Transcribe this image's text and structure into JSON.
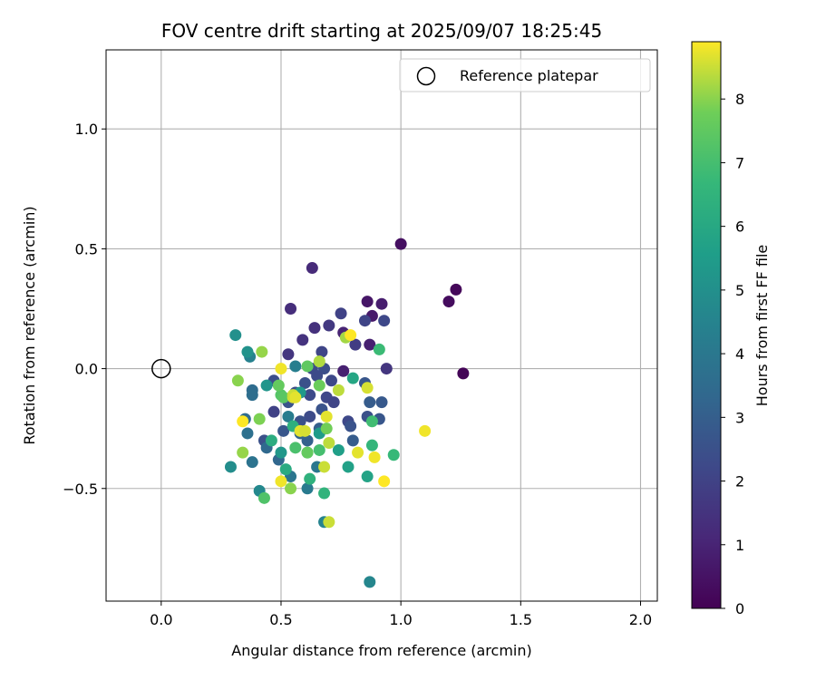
{
  "chart_data": {
    "type": "scatter",
    "title": "FOV centre drift starting at 2025/09/07 18:25:45",
    "xlabel": "Angular distance from reference (arcmin)",
    "ylabel": "Rotation from reference (arcmin)",
    "xlim": [
      -0.23,
      2.07
    ],
    "ylim": [
      -0.97,
      1.33
    ],
    "xticks": [
      0.0,
      0.5,
      1.0,
      1.5,
      2.0
    ],
    "xtick_labels": [
      "0.0",
      "0.5",
      "1.0",
      "1.5",
      "2.0"
    ],
    "yticks": [
      -0.5,
      0.0,
      0.5,
      1.0
    ],
    "ytick_labels": [
      "−0.5",
      "0.0",
      "0.5",
      "1.0"
    ],
    "grid": true,
    "legend": {
      "placement": "top-right",
      "entries": [
        "Reference platepar"
      ]
    },
    "reference_point": {
      "x": 0.0,
      "y": 0.0
    },
    "colorbar": {
      "label": "Hours from first FF file",
      "min": 0,
      "max": 8.9,
      "ticks": [
        0,
        1,
        2,
        3,
        4,
        5,
        6,
        7,
        8
      ],
      "tick_labels": [
        "0",
        "1",
        "2",
        "3",
        "4",
        "5",
        "6",
        "7",
        "8"
      ],
      "colormap": "viridis"
    },
    "points": [
      {
        "x": 1.26,
        "y": -0.02,
        "h": 0.1
      },
      {
        "x": 1.23,
        "y": 0.33,
        "h": 0.2
      },
      {
        "x": 1.2,
        "y": 0.28,
        "h": 0.3
      },
      {
        "x": 1.0,
        "y": 0.52,
        "h": 0.4
      },
      {
        "x": 0.86,
        "y": 0.28,
        "h": 0.6
      },
      {
        "x": 0.88,
        "y": 0.22,
        "h": 0.7
      },
      {
        "x": 0.92,
        "y": 0.27,
        "h": 0.8
      },
      {
        "x": 0.87,
        "y": 0.1,
        "h": 0.9
      },
      {
        "x": 0.76,
        "y": 0.15,
        "h": 1.0
      },
      {
        "x": 0.76,
        "y": -0.01,
        "h": 0.9
      },
      {
        "x": 0.63,
        "y": 0.42,
        "h": 1.2
      },
      {
        "x": 0.54,
        "y": 0.25,
        "h": 1.3
      },
      {
        "x": 0.64,
        "y": 0.17,
        "h": 1.4
      },
      {
        "x": 0.59,
        "y": 0.12,
        "h": 1.5
      },
      {
        "x": 0.53,
        "y": 0.06,
        "h": 1.6
      },
      {
        "x": 0.7,
        "y": 0.18,
        "h": 1.7
      },
      {
        "x": 0.81,
        "y": 0.1,
        "h": 1.8
      },
      {
        "x": 0.94,
        "y": 0.0,
        "h": 1.6
      },
      {
        "x": 0.75,
        "y": 0.23,
        "h": 2.0
      },
      {
        "x": 0.85,
        "y": 0.2,
        "h": 2.1
      },
      {
        "x": 0.93,
        "y": 0.2,
        "h": 2.2
      },
      {
        "x": 0.67,
        "y": 0.07,
        "h": 2.1
      },
      {
        "x": 0.63,
        "y": 0.0,
        "h": 2.3
      },
      {
        "x": 0.68,
        "y": 0.0,
        "h": 2.4
      },
      {
        "x": 0.71,
        "y": -0.05,
        "h": 2.2
      },
      {
        "x": 0.65,
        "y": -0.03,
        "h": 2.3
      },
      {
        "x": 0.6,
        "y": -0.06,
        "h": 2.5
      },
      {
        "x": 0.56,
        "y": -0.1,
        "h": 2.4
      },
      {
        "x": 0.62,
        "y": -0.11,
        "h": 2.3
      },
      {
        "x": 0.69,
        "y": -0.12,
        "h": 2.2
      },
      {
        "x": 0.72,
        "y": -0.14,
        "h": 2.1
      },
      {
        "x": 0.67,
        "y": -0.17,
        "h": 2.6
      },
      {
        "x": 0.62,
        "y": -0.2,
        "h": 2.3
      },
      {
        "x": 0.58,
        "y": -0.22,
        "h": 2.5
      },
      {
        "x": 0.53,
        "y": -0.14,
        "h": 2.6
      },
      {
        "x": 0.47,
        "y": -0.05,
        "h": 2.4
      },
      {
        "x": 0.47,
        "y": -0.18,
        "h": 2.0
      },
      {
        "x": 0.51,
        "y": -0.26,
        "h": 2.7
      },
      {
        "x": 0.43,
        "y": -0.3,
        "h": 2.5
      },
      {
        "x": 0.78,
        "y": -0.22,
        "h": 2.2
      },
      {
        "x": 0.79,
        "y": -0.24,
        "h": 2.6
      },
      {
        "x": 0.86,
        "y": -0.2,
        "h": 2.5
      },
      {
        "x": 0.91,
        "y": -0.21,
        "h": 2.7
      },
      {
        "x": 0.92,
        "y": -0.14,
        "h": 2.8
      },
      {
        "x": 0.87,
        "y": -0.14,
        "h": 2.9
      },
      {
        "x": 0.85,
        "y": -0.06,
        "h": 2.7
      },
      {
        "x": 0.8,
        "y": -0.3,
        "h": 2.9
      },
      {
        "x": 0.66,
        "y": -0.25,
        "h": 3.0
      },
      {
        "x": 0.61,
        "y": -0.3,
        "h": 3.1
      },
      {
        "x": 0.58,
        "y": -0.27,
        "h": 3.2
      },
      {
        "x": 0.49,
        "y": -0.38,
        "h": 3.3
      },
      {
        "x": 0.44,
        "y": -0.33,
        "h": 3.4
      },
      {
        "x": 0.38,
        "y": -0.09,
        "h": 3.5
      },
      {
        "x": 0.38,
        "y": -0.11,
        "h": 3.6
      },
      {
        "x": 0.36,
        "y": -0.27,
        "h": 3.7
      },
      {
        "x": 0.38,
        "y": -0.39,
        "h": 3.8
      },
      {
        "x": 0.35,
        "y": -0.21,
        "h": 3.5
      },
      {
        "x": 0.54,
        "y": -0.45,
        "h": 3.9
      },
      {
        "x": 0.65,
        "y": -0.41,
        "h": 4.0
      },
      {
        "x": 0.61,
        "y": -0.5,
        "h": 4.1
      },
      {
        "x": 0.53,
        "y": -0.2,
        "h": 4.2
      },
      {
        "x": 0.56,
        "y": 0.01,
        "h": 4.3
      },
      {
        "x": 0.37,
        "y": 0.05,
        "h": 4.4
      },
      {
        "x": 0.68,
        "y": -0.64,
        "h": 4.5
      },
      {
        "x": 0.87,
        "y": -0.89,
        "h": 4.6
      },
      {
        "x": 0.41,
        "y": -0.51,
        "h": 4.7
      },
      {
        "x": 0.29,
        "y": -0.41,
        "h": 4.9
      },
      {
        "x": 0.31,
        "y": 0.14,
        "h": 5.0
      },
      {
        "x": 0.36,
        "y": 0.07,
        "h": 5.1
      },
      {
        "x": 0.44,
        "y": -0.07,
        "h": 5.2
      },
      {
        "x": 0.5,
        "y": -0.35,
        "h": 5.3
      },
      {
        "x": 0.58,
        "y": -0.1,
        "h": 5.4
      },
      {
        "x": 0.66,
        "y": -0.27,
        "h": 5.5
      },
      {
        "x": 0.74,
        "y": -0.34,
        "h": 5.6
      },
      {
        "x": 0.78,
        "y": -0.41,
        "h": 5.7
      },
      {
        "x": 0.86,
        "y": -0.45,
        "h": 5.8
      },
      {
        "x": 0.8,
        "y": -0.04,
        "h": 5.9
      },
      {
        "x": 0.61,
        "y": -0.35,
        "h": 6.0
      },
      {
        "x": 0.52,
        "y": -0.42,
        "h": 6.1
      },
      {
        "x": 0.46,
        "y": -0.3,
        "h": 6.2
      },
      {
        "x": 0.55,
        "y": -0.24,
        "h": 6.3
      },
      {
        "x": 0.62,
        "y": -0.46,
        "h": 6.4
      },
      {
        "x": 0.68,
        "y": -0.52,
        "h": 6.5
      },
      {
        "x": 0.88,
        "y": -0.32,
        "h": 6.6
      },
      {
        "x": 0.97,
        "y": -0.36,
        "h": 6.7
      },
      {
        "x": 0.91,
        "y": 0.08,
        "h": 6.8
      },
      {
        "x": 0.88,
        "y": -0.22,
        "h": 6.9
      },
      {
        "x": 0.66,
        "y": -0.34,
        "h": 7.0
      },
      {
        "x": 0.56,
        "y": -0.33,
        "h": 7.1
      },
      {
        "x": 0.43,
        "y": -0.54,
        "h": 7.2
      },
      {
        "x": 0.5,
        "y": -0.11,
        "h": 7.3
      },
      {
        "x": 0.51,
        "y": -0.12,
        "h": 7.4
      },
      {
        "x": 0.61,
        "y": 0.01,
        "h": 7.5
      },
      {
        "x": 0.61,
        "y": -0.35,
        "h": 7.6
      },
      {
        "x": 0.66,
        "y": -0.07,
        "h": 7.7
      },
      {
        "x": 0.69,
        "y": -0.25,
        "h": 7.8
      },
      {
        "x": 0.41,
        "y": -0.21,
        "h": 7.9
      },
      {
        "x": 0.32,
        "y": -0.05,
        "h": 8.0
      },
      {
        "x": 0.42,
        "y": 0.07,
        "h": 8.1
      },
      {
        "x": 0.77,
        "y": 0.13,
        "h": 8.2
      },
      {
        "x": 0.66,
        "y": 0.03,
        "h": 8.3
      },
      {
        "x": 0.74,
        "y": -0.09,
        "h": 8.4
      },
      {
        "x": 0.68,
        "y": -0.41,
        "h": 8.5
      },
      {
        "x": 0.34,
        "y": -0.35,
        "h": 8.1
      },
      {
        "x": 0.55,
        "y": -0.12,
        "h": 8.6
      },
      {
        "x": 0.58,
        "y": -0.26,
        "h": 8.7
      },
      {
        "x": 0.5,
        "y": 0.0,
        "h": 8.8
      },
      {
        "x": 0.5,
        "y": -0.47,
        "h": 8.8
      },
      {
        "x": 0.7,
        "y": -0.64,
        "h": 8.5
      },
      {
        "x": 0.82,
        "y": -0.35,
        "h": 8.7
      },
      {
        "x": 0.89,
        "y": -0.37,
        "h": 8.8
      },
      {
        "x": 0.93,
        "y": -0.47,
        "h": 8.9
      },
      {
        "x": 0.86,
        "y": -0.08,
        "h": 8.6
      },
      {
        "x": 1.1,
        "y": -0.26,
        "h": 8.8
      },
      {
        "x": 0.34,
        "y": -0.22,
        "h": 8.9
      },
      {
        "x": 0.69,
        "y": -0.2,
        "h": 8.7
      },
      {
        "x": 0.79,
        "y": 0.14,
        "h": 8.9
      },
      {
        "x": 0.55,
        "y": -0.11,
        "h": 8.5
      },
      {
        "x": 0.56,
        "y": -0.12,
        "h": 8.7
      },
      {
        "x": 0.49,
        "y": -0.07,
        "h": 7.6
      },
      {
        "x": 0.6,
        "y": -0.26,
        "h": 8.6
      },
      {
        "x": 0.7,
        "y": -0.31,
        "h": 8.4
      },
      {
        "x": 0.54,
        "y": -0.5,
        "h": 8.0
      }
    ]
  }
}
